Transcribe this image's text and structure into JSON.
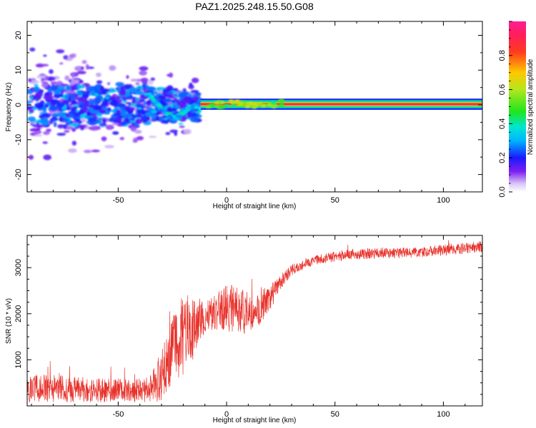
{
  "figure": {
    "title": "PAZ1.2025.248.15.50.G08"
  },
  "colors": {
    "snr_line": "#e8322b",
    "band_core": "#e8322b",
    "background": "#ffffff",
    "axes": "#000000",
    "colormap": [
      "#ffffff",
      "#d8c2f7",
      "#7d1ff2",
      "#1a1aff",
      "#00b4ff",
      "#00e6d2",
      "#1ee61e",
      "#b4e61e",
      "#ffc800",
      "#ff3c1e",
      "#ff1e5a",
      "#ff1e96"
    ]
  },
  "chart_data": [
    {
      "type": "heatmap",
      "title": "",
      "xlabel": "Height of straight line (km)",
      "ylabel": "Frequency (Hz)",
      "xlim": [
        -92,
        118
      ],
      "ylim": [
        -25,
        24
      ],
      "xticks": [
        -50,
        0,
        50,
        100
      ],
      "xtick_labels": [
        "-50",
        "0",
        "50",
        "100"
      ],
      "yticks": [
        -20,
        -10,
        0,
        10,
        20
      ],
      "ytick_labels": [
        "-20",
        "-10",
        "0",
        "10",
        "20"
      ],
      "grid": false,
      "colorbar": {
        "label": "Normalized spectral amplitude",
        "range": [
          0,
          1
        ],
        "ticks": [
          0.0,
          0.2,
          0.4,
          0.6,
          0.8
        ],
        "tick_labels": [
          "0.0",
          "0.2",
          "0.4",
          "0.6",
          "0.8"
        ]
      },
      "features": {
        "scattered_energy": {
          "x_range": [
            -92,
            -13
          ],
          "freq_range": [
            -22,
            15
          ],
          "amplitude_range": [
            0.05,
            0.25
          ]
        },
        "descending_track": {
          "points": [
            [
              -36,
              3
            ],
            [
              -30,
              -1
            ],
            [
              -24,
              -4
            ],
            [
              -18,
              -1
            ],
            [
              -12,
              0
            ]
          ],
          "amplitude": 0.3
        },
        "stable_band": {
          "x_range": [
            -12,
            118
          ],
          "freq_center": 0.2,
          "amplitude": 1.0
        }
      }
    },
    {
      "type": "line",
      "title": "",
      "xlabel": "Height of straight line (km)",
      "ylabel": "SNR (10 * v/v)",
      "xlim": [
        -92,
        118
      ],
      "ylim": [
        0,
        3700
      ],
      "xticks": [
        -50,
        0,
        50,
        100
      ],
      "xtick_labels": [
        "-50",
        "0",
        "50",
        "100"
      ],
      "yticks": [
        1000,
        2000,
        3000
      ],
      "ytick_labels": [
        "1000",
        "2000",
        "3000"
      ],
      "grid": false,
      "series": [
        {
          "name": "SNR",
          "x": [
            -92,
            -80,
            -70,
            -60,
            -50,
            -40,
            -35,
            -30,
            -25,
            -20,
            -15,
            -10,
            -5,
            0,
            5,
            10,
            15,
            20,
            25,
            30,
            35,
            40,
            50,
            60,
            70,
            80,
            90,
            100,
            110,
            118
          ],
          "values": [
            380,
            380,
            360,
            330,
            350,
            330,
            380,
            650,
            1300,
            1550,
            1700,
            1950,
            2050,
            2150,
            2050,
            2050,
            2100,
            2350,
            2700,
            2950,
            3050,
            3150,
            3250,
            3300,
            3310,
            3320,
            3340,
            3380,
            3420,
            3460
          ],
          "noise_amplitude": [
            300,
            300,
            280,
            260,
            250,
            250,
            300,
            550,
            800,
            900,
            650,
            350,
            400,
            500,
            550,
            450,
            350,
            300,
            150,
            120,
            100,
            100,
            110,
            120,
            110,
            110,
            110,
            120,
            120,
            120
          ]
        }
      ]
    }
  ]
}
